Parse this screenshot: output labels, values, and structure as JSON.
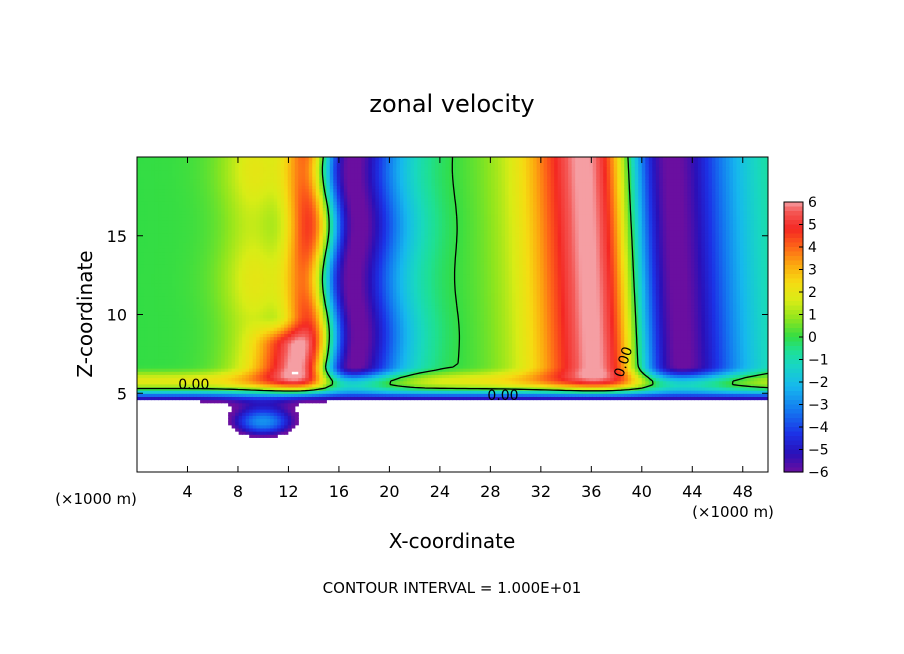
{
  "chart_data": {
    "type": "heatmap",
    "title": "zonal velocity",
    "xlabel": "X-coordinate",
    "ylabel": "Z-coordinate",
    "x_unit_label": "(×1000 m)",
    "x_unit_label_right": "(×1000 m)",
    "xlim": [
      0,
      50
    ],
    "ylim": [
      0,
      20
    ],
    "x_ticks": [
      4,
      8,
      12,
      16,
      20,
      24,
      28,
      32,
      36,
      40,
      44,
      48
    ],
    "y_ticks": [
      5,
      10,
      15
    ],
    "colorbar": {
      "min": -6,
      "max": 6,
      "ticks": [
        6,
        5,
        4,
        3,
        2,
        1,
        0,
        -1,
        -2,
        -3,
        -4,
        -5,
        -6
      ]
    },
    "colormap": [
      [
        -6,
        "#6a0fa0"
      ],
      [
        -5.2,
        "#2a10b8"
      ],
      [
        -4.3,
        "#1c32e6"
      ],
      [
        -3.3,
        "#1476f0"
      ],
      [
        -2.2,
        "#16b8ee"
      ],
      [
        -1.2,
        "#18d8c0"
      ],
      [
        -0.6,
        "#1ee092"
      ],
      [
        0,
        "#33dd44"
      ],
      [
        0.8,
        "#8de51e"
      ],
      [
        1.6,
        "#d8ec16"
      ],
      [
        2.4,
        "#f5dc12"
      ],
      [
        3.2,
        "#fca80f"
      ],
      [
        4.0,
        "#fd6418"
      ],
      [
        4.8,
        "#f42822"
      ],
      [
        5.6,
        "#f45a58"
      ],
      [
        6.0,
        "#f59ea3"
      ]
    ],
    "contour_labels": [
      {
        "text": "0.00",
        "x": 4.5,
        "z": 5.6
      },
      {
        "text": "0.00",
        "x": 29,
        "z": 4.9
      },
      {
        "text": "0.00",
        "x": 38.5,
        "z": 7.0,
        "rotated": true
      }
    ],
    "footnote": "CONTOUR INTERVAL = 1.000E+01"
  }
}
